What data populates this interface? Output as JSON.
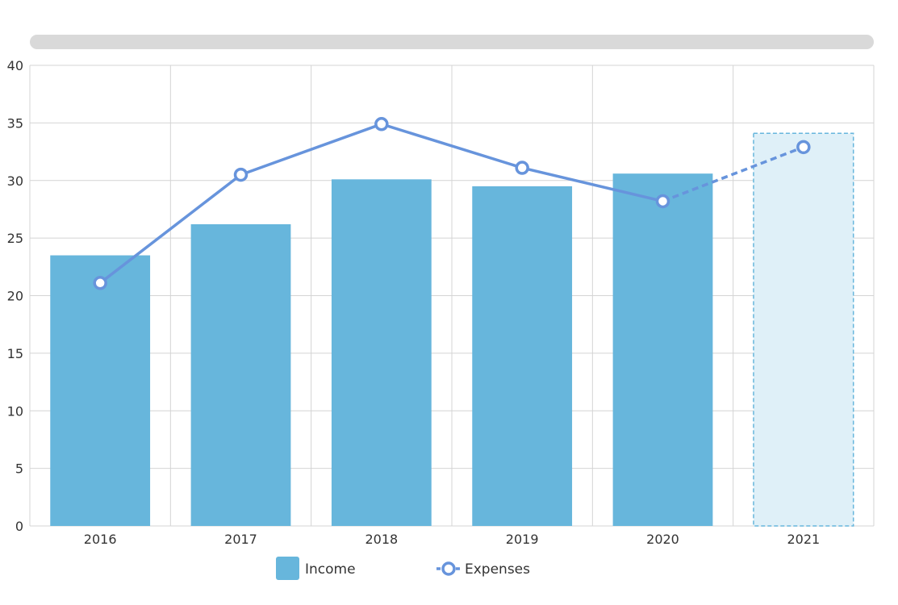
{
  "chart_data": {
    "type": "bar",
    "categories": [
      "2016",
      "2017",
      "2018",
      "2019",
      "2020",
      "2021"
    ],
    "series": [
      {
        "name": "Income",
        "type": "bar",
        "values": [
          23.5,
          26.2,
          30.1,
          29.5,
          30.6,
          34.1
        ],
        "projected_from_index": 5
      },
      {
        "name": "Expenses",
        "type": "line",
        "values": [
          21.1,
          30.5,
          34.9,
          31.1,
          28.2,
          32.9
        ],
        "projected_from_index": 5
      }
    ],
    "ylim": [
      0,
      40
    ],
    "yticks": [
      "0",
      "5",
      "10",
      "15",
      "20",
      "25",
      "30",
      "35",
      "40"
    ],
    "grid": true,
    "legend_position": "bottom-center"
  },
  "colors": {
    "income": "#67b6dc",
    "income_projected": "#dff0f8",
    "expenses": "#6794dc",
    "grid": "#d4d4d4",
    "scrollbar": "#d9d9d9"
  },
  "legend": {
    "income_label": "Income",
    "expenses_label": "Expenses"
  }
}
